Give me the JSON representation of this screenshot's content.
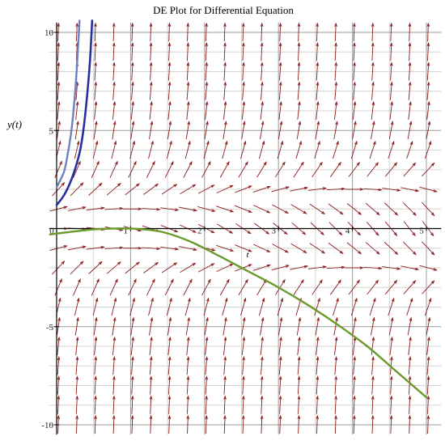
{
  "chart_data": {
    "type": "vector_field",
    "title": "DE Plot for Differential Equation",
    "xlabel": "t",
    "ylabel": "y(t)",
    "xlim": [
      -0.1,
      5.2
    ],
    "ylim": [
      -10.5,
      10.5
    ],
    "x_ticks": [
      0,
      1,
      2,
      3,
      4,
      5
    ],
    "y_ticks": [
      -10,
      -5,
      5,
      10
    ],
    "grid": true,
    "arrow_color": "#8b1a1a",
    "series": [
      {
        "color": "#6f7fbf",
        "points": [
          [
            0,
            2.1
          ],
          [
            0.1,
            2.9
          ],
          [
            0.15,
            3.8
          ],
          [
            0.2,
            5.0
          ],
          [
            0.24,
            6.5
          ],
          [
            0.27,
            8.0
          ],
          [
            0.31,
            10.6
          ]
        ]
      },
      {
        "color": "#2b2f9e",
        "points": [
          [
            0,
            1.2
          ],
          [
            0.1,
            1.7
          ],
          [
            0.2,
            2.5
          ],
          [
            0.3,
            3.7
          ],
          [
            0.35,
            4.7
          ],
          [
            0.4,
            6.3
          ],
          [
            0.45,
            8.5
          ],
          [
            0.48,
            10.6
          ]
        ]
      },
      {
        "color": "#6a9a2a",
        "points": [
          [
            -0.1,
            -0.3
          ],
          [
            0.3,
            -0.12
          ],
          [
            0.6,
            -0.02
          ],
          [
            1.0,
            0
          ],
          [
            1.4,
            -0.15
          ],
          [
            1.8,
            -0.65
          ],
          [
            2.2,
            -1.4
          ],
          [
            2.6,
            -2.2
          ],
          [
            3.0,
            -3.0
          ],
          [
            3.4,
            -3.9
          ],
          [
            3.8,
            -4.9
          ],
          [
            4.2,
            -6.0
          ],
          [
            4.6,
            -7.3
          ],
          [
            5.0,
            -8.6
          ]
        ]
      }
    ]
  }
}
